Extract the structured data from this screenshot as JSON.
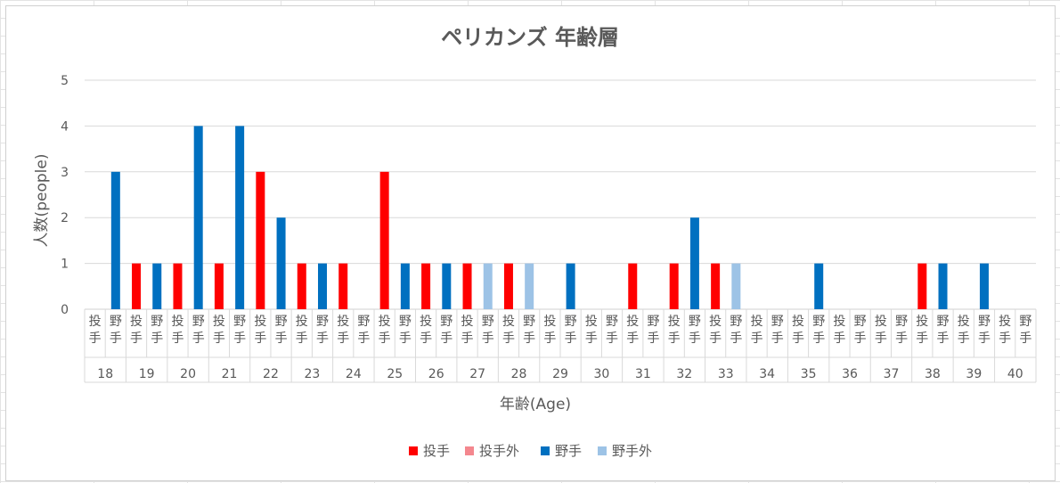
{
  "chart_data": {
    "type": "bar",
    "title": "ペリカンズ 年齢層",
    "xlabel": "年齢(Age)",
    "ylabel": "人数(people)",
    "ylim": [
      0,
      5
    ],
    "yticks": [
      0,
      1,
      2,
      3,
      4,
      5
    ],
    "grid": true,
    "legend_position": "bottom",
    "categories": [
      "18",
      "19",
      "20",
      "21",
      "22",
      "23",
      "24",
      "25",
      "26",
      "27",
      "28",
      "29",
      "30",
      "31",
      "32",
      "33",
      "34",
      "35",
      "36",
      "37",
      "38",
      "39",
      "40"
    ],
    "subcategories": [
      "投手",
      "野手"
    ],
    "series": [
      {
        "name": "投手",
        "color": "#ff0000",
        "values": [
          0,
          1,
          1,
          1,
          3,
          1,
          1,
          3,
          1,
          1,
          1,
          0,
          0,
          1,
          1,
          1,
          0,
          0,
          0,
          0,
          1,
          0,
          0
        ]
      },
      {
        "name": "投手外",
        "color": "#f4878e",
        "values": [
          0,
          0,
          0,
          0,
          0,
          0,
          0,
          0,
          0,
          0,
          0,
          0,
          0,
          0,
          0,
          0,
          0,
          0,
          0,
          0,
          0,
          0,
          0
        ]
      },
      {
        "name": "野手",
        "color": "#0070c0",
        "values": [
          3,
          1,
          4,
          4,
          2,
          1,
          0,
          1,
          1,
          0,
          0,
          1,
          0,
          0,
          2,
          0,
          0,
          1,
          0,
          0,
          1,
          1,
          0
        ]
      },
      {
        "name": "野手外",
        "color": "#9dc3e6",
        "values": [
          0,
          0,
          0,
          0,
          0,
          0,
          0,
          0,
          0,
          1,
          1,
          0,
          0,
          0,
          0,
          1,
          0,
          0,
          0,
          0,
          0,
          0,
          0
        ]
      }
    ]
  }
}
